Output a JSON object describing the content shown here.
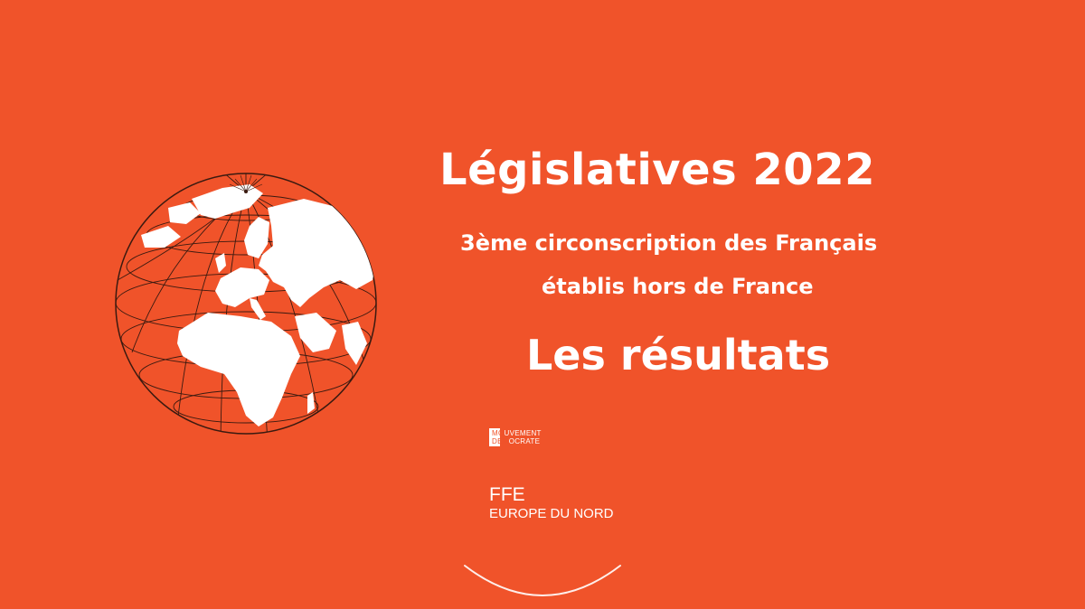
{
  "slide": {
    "title": "Législatives 2022",
    "subtitle_line1": "3ème circonscription des Français",
    "subtitle_line2": "établis hors de France",
    "results": "Les résultats"
  },
  "logos": {
    "modem_line1_a": "MO",
    "modem_line1_b": "UVEMENT",
    "modem_line2_a": "DEM",
    "modem_line2_b": "OCRATE",
    "ffe": "FFE",
    "ffe_region": "EUROPE DU NORD"
  },
  "colors": {
    "background": "#F0532A",
    "text": "#FFFFFF",
    "globe_lines": "#3A1A10"
  },
  "icons": {
    "globe": "globe-icon",
    "arc": "arc-decoration"
  }
}
